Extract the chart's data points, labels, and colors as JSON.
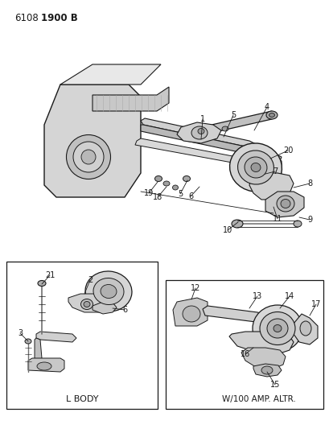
{
  "bg_color": "#ffffff",
  "line_color": "#1a1a1a",
  "text_color": "#1a1a1a",
  "gray_fill": "#c8c8c8",
  "gray_mid": "#a0a0a0",
  "gray_dark": "#808080",
  "gray_light": "#e0e0e0",
  "header_6108": "6108",
  "header_1900B": "1900 B",
  "box1_label": "L BODY",
  "box2_label": "W/100 AMP. ALTR.",
  "figw": 4.1,
  "figh": 5.33,
  "dpi": 100
}
